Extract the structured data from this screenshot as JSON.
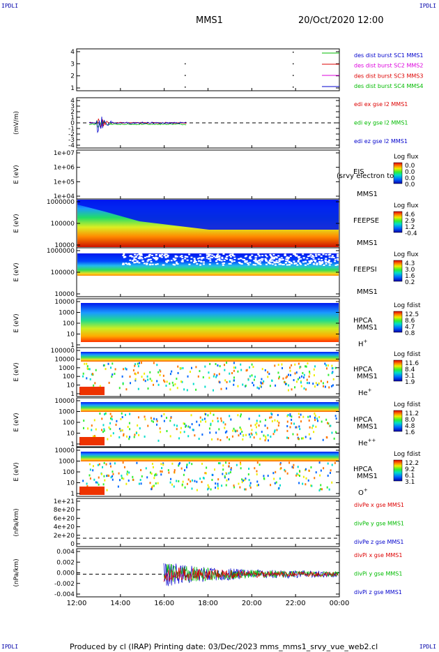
{
  "corners": {
    "tl": "IPDLI",
    "tr": "IPDLI",
    "bl": "IPDLI",
    "br": "IPDLI"
  },
  "header": {
    "spacecraft": "MMS1",
    "datetime": "20/Oct/2020 12:00"
  },
  "footer": {
    "text": "Produced by cl (IRAP)   Printing date: 03/Dec/2023   mms_mms1_srvy_vue_web2.cl"
  },
  "colors": {
    "red": "#dd0000",
    "green": "#00bb00",
    "blue": "#0000cc",
    "magenta": "#dd00dd",
    "grid": "#000000"
  },
  "chart_data": {
    "type": "line",
    "xaxis": {
      "ticks": [
        "12:00",
        "14:00",
        "16:00",
        "18:00",
        "20:00",
        "22:00",
        "00:00"
      ],
      "range_hours": [
        12,
        24
      ]
    },
    "panels": [
      {
        "id": "burst",
        "type": "scatter",
        "ytitle": "",
        "yticks": [
          "4",
          "3",
          "2",
          "1"
        ],
        "ylim": [
          0.5,
          4.5
        ],
        "legend": [
          {
            "label": "des dist burst SC1 MMS1",
            "color": "#0000cc"
          },
          {
            "label": "des dist burst SC2 MMS2",
            "color": "#dd00dd"
          },
          {
            "label": "des dist burst SC3 MMS3",
            "color": "#dd0000"
          },
          {
            "label": "des dist burst SC4 MMS4",
            "color": "#00bb00"
          }
        ]
      },
      {
        "id": "efield",
        "type": "line",
        "ytitle": "(mV/m)",
        "yticks": [
          "4",
          "3",
          "2",
          "1",
          "0",
          "-1",
          "-2",
          "-3",
          "-4"
        ],
        "ylim": [
          -4,
          4
        ],
        "legend": [
          {
            "label": "edi ex gse l2 MMS1",
            "color": "#dd0000"
          },
          {
            "label": "edi ey gse l2 MMS1",
            "color": "#00bb00"
          },
          {
            "label": "edi ez gse l2 MMS1",
            "color": "#0000cc"
          }
        ]
      },
      {
        "id": "eis",
        "type": "heatmap",
        "ytitle": "E (eV)",
        "yticks": [
          "1e+07",
          "1e+06",
          "1e+05",
          "1e+04"
        ],
        "ylim": [
          10000,
          10000000
        ],
        "instrument": [
          "EIS",
          "MMS1"
        ],
        "overlay": "(srvy electron to",
        "colorbar": {
          "title": "Log flux",
          "ticks": [
            "0.0",
            "0.0",
            "0.0",
            "0.0"
          ]
        }
      },
      {
        "id": "feepse",
        "type": "heatmap",
        "ytitle": "E (eV)",
        "yticks": [
          "1000000",
          "100000",
          "10000"
        ],
        "ylim": [
          10000,
          1000000
        ],
        "instrument": [
          "FEEPSE",
          "MMS1"
        ],
        "colorbar": {
          "title": "Log flux",
          "ticks": [
            "4.6",
            "2.9",
            "1.2",
            "-0.4"
          ]
        }
      },
      {
        "id": "feepsi",
        "type": "heatmap",
        "ytitle": "E (eV)",
        "yticks": [
          "1000000",
          "100000",
          "10000"
        ],
        "ylim": [
          10000,
          1000000
        ],
        "instrument": [
          "FEEPSI",
          "MMS1"
        ],
        "colorbar": {
          "title": "Log flux",
          "ticks": [
            "4.3",
            "3.0",
            "1.6",
            "0.2"
          ]
        }
      },
      {
        "id": "hpca_h",
        "type": "heatmap",
        "ytitle": "E (eV)",
        "yticks": [
          "10000",
          "1000",
          "100",
          "10",
          "1"
        ],
        "ylim": [
          1,
          40000
        ],
        "instrument": [
          "HPCA",
          "MMS1"
        ],
        "species": "H",
        "charge": "+",
        "colorbar": {
          "title": "Log fdist",
          "ticks": [
            "12.5",
            "8.6",
            "4.7",
            "0.8"
          ]
        }
      },
      {
        "id": "hpca_he",
        "type": "heatmap",
        "ytitle": "E (eV)",
        "yticks": [
          "100000",
          "10000",
          "1000",
          "100",
          "10",
          "1"
        ],
        "ylim": [
          1,
          100000
        ],
        "instrument": [
          "HPCA",
          "MMS1"
        ],
        "species": "He",
        "charge": "+",
        "colorbar": {
          "title": "Log fdist",
          "ticks": [
            "11.6",
            "8.4",
            "5.1",
            "1.9"
          ]
        }
      },
      {
        "id": "hpca_he2",
        "type": "heatmap",
        "ytitle": "E (eV)",
        "yticks": [
          "10000",
          "1000",
          "100",
          "10",
          "1"
        ],
        "ylim": [
          1,
          40000
        ],
        "instrument": [
          "HPCA",
          "MMS1"
        ],
        "species": "He",
        "charge": "++",
        "colorbar": {
          "title": "Log fdist",
          "ticks": [
            "11.2",
            "8.0",
            "4.8",
            "1.6"
          ]
        }
      },
      {
        "id": "hpca_o",
        "type": "heatmap",
        "ytitle": "E (eV)",
        "yticks": [
          "10000",
          "1000",
          "100",
          "10",
          "1"
        ],
        "ylim": [
          1,
          40000
        ],
        "instrument": [
          "HPCA",
          "MMS1"
        ],
        "species": "O",
        "charge": "+",
        "colorbar": {
          "title": "Log fdist",
          "ticks": [
            "12.2",
            "9.2",
            "6.1",
            "3.1"
          ]
        }
      },
      {
        "id": "divpe",
        "type": "line",
        "ytitle": "(nPa/km)",
        "yticks": [
          "1e+21",
          "8e+20",
          "6e+20",
          "4e+20",
          "2e+20",
          "0"
        ],
        "ylim": [
          0,
          1.1e+21
        ],
        "legend": [
          {
            "label": "divPe x gse MMS1",
            "color": "#dd0000"
          },
          {
            "label": "divPe y gse MMS1",
            "color": "#00bb00"
          },
          {
            "label": "divPe z gse MMS1",
            "color": "#0000cc"
          }
        ]
      },
      {
        "id": "divpi",
        "type": "line",
        "ytitle": "(nPa/km)",
        "yticks": [
          "0.004",
          "0.002",
          "0.000",
          "-0.002",
          "-0.004"
        ],
        "ylim": [
          -0.0045,
          0.0045
        ],
        "legend": [
          {
            "label": "divPi x gse MMS1",
            "color": "#dd0000"
          },
          {
            "label": "divPi y gse MMS1",
            "color": "#00bb00"
          },
          {
            "label": "divPi z gse MMS1",
            "color": "#0000cc"
          }
        ]
      }
    ]
  }
}
